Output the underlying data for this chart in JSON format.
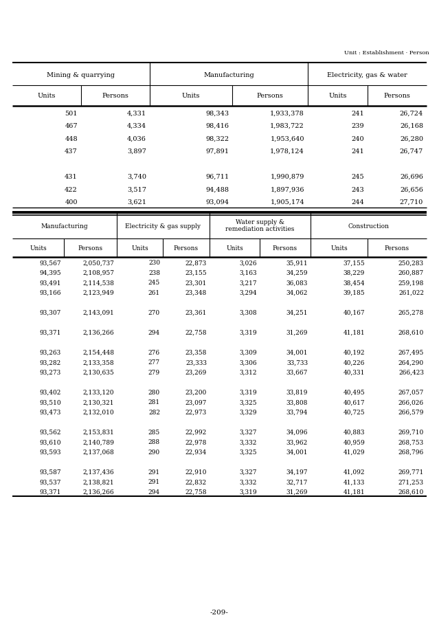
{
  "unit_label": "Unit : Establishment · Person",
  "page_number": "-209-",
  "table1": {
    "col_groups": [
      {
        "label": "Mining & quarrying",
        "span": 2
      },
      {
        "label": "Manufacturing",
        "span": 2
      },
      {
        "label": "Electricity, gas & water",
        "span": 2
      }
    ],
    "sub_headers": [
      "Units",
      "Persons",
      "Units",
      "Persons",
      "Units",
      "Persons"
    ],
    "rows": [
      [
        "501",
        "4,331",
        "98,343",
        "1,933,378",
        "241",
        "26,724"
      ],
      [
        "467",
        "4,334",
        "98,416",
        "1,983,722",
        "239",
        "26,168"
      ],
      [
        "448",
        "4,036",
        "98,322",
        "1,953,640",
        "240",
        "26,280"
      ],
      [
        "437",
        "3,897",
        "97,891",
        "1,978,124",
        "241",
        "26,747"
      ],
      [
        "",
        "",
        "",
        "",
        "",
        ""
      ],
      [
        "431",
        "3,740",
        "96,711",
        "1,990,879",
        "245",
        "26,696"
      ],
      [
        "422",
        "3,517",
        "94,488",
        "1,897,936",
        "243",
        "26,656"
      ],
      [
        "400",
        "3,621",
        "93,094",
        "1,905,174",
        "244",
        "27,710"
      ]
    ]
  },
  "table2": {
    "col_groups": [
      {
        "label": "Manufacturing",
        "span": 2
      },
      {
        "label": "Electricity & gas supply",
        "span": 2
      },
      {
        "label": "Water supply &\nremediation activities",
        "span": 2
      },
      {
        "label": "Construction",
        "span": 2
      }
    ],
    "sub_headers": [
      "Units",
      "Persons",
      "Units",
      "Persons",
      "Units",
      "Persons",
      "Units",
      "Persons"
    ],
    "rows": [
      [
        "93,567",
        "2,050,737",
        "230",
        "22,873",
        "3,026",
        "35,911",
        "37,155",
        "250,283"
      ],
      [
        "94,395",
        "2,108,957",
        "238",
        "23,155",
        "3,163",
        "34,259",
        "38,229",
        "260,887"
      ],
      [
        "93,491",
        "2,114,538",
        "245",
        "23,301",
        "3,217",
        "36,083",
        "38,454",
        "259,198"
      ],
      [
        "93,166",
        "2,123,949",
        "261",
        "23,348",
        "3,294",
        "34,062",
        "39,185",
        "261,022"
      ],
      [
        "",
        "",
        "",
        "",
        "",
        "",
        "",
        ""
      ],
      [
        "93,307",
        "2,143,091",
        "270",
        "23,361",
        "3,308",
        "34,251",
        "40,167",
        "265,278"
      ],
      [
        "",
        "",
        "",
        "",
        "",
        "",
        "",
        ""
      ],
      [
        "93,371",
        "2,136,266",
        "294",
        "22,758",
        "3,319",
        "31,269",
        "41,181",
        "268,610"
      ],
      [
        "",
        "",
        "",
        "",
        "",
        "",
        "",
        ""
      ],
      [
        "93,263",
        "2,154,448",
        "276",
        "23,358",
        "3,309",
        "34,001",
        "40,192",
        "267,495"
      ],
      [
        "93,282",
        "2,133,358",
        "277",
        "23,333",
        "3,306",
        "33,733",
        "40,226",
        "264,290"
      ],
      [
        "93,273",
        "2,130,635",
        "279",
        "23,269",
        "3,312",
        "33,667",
        "40,331",
        "266,423"
      ],
      [
        "",
        "",
        "",
        "",
        "",
        "",
        "",
        ""
      ],
      [
        "93,402",
        "2,133,120",
        "280",
        "23,200",
        "3,319",
        "33,819",
        "40,495",
        "267,057"
      ],
      [
        "93,510",
        "2,130,321",
        "281",
        "23,097",
        "3,325",
        "33,808",
        "40,617",
        "266,026"
      ],
      [
        "93,473",
        "2,132,010",
        "282",
        "22,973",
        "3,329",
        "33,794",
        "40,725",
        "266,579"
      ],
      [
        "",
        "",
        "",
        "",
        "",
        "",
        "",
        ""
      ],
      [
        "93,562",
        "2,153,831",
        "285",
        "22,992",
        "3,327",
        "34,096",
        "40,883",
        "269,710"
      ],
      [
        "93,610",
        "2,140,789",
        "288",
        "22,978",
        "3,332",
        "33,962",
        "40,959",
        "268,753"
      ],
      [
        "93,593",
        "2,137,068",
        "290",
        "22,934",
        "3,325",
        "34,001",
        "41,029",
        "268,796"
      ],
      [
        "",
        "",
        "",
        "",
        "",
        "",
        "",
        ""
      ],
      [
        "93,587",
        "2,137,436",
        "291",
        "22,910",
        "3,327",
        "34,197",
        "41,092",
        "269,771"
      ],
      [
        "93,537",
        "2,138,821",
        "291",
        "22,832",
        "3,332",
        "32,717",
        "41,133",
        "271,253"
      ],
      [
        "93,371",
        "2,136,266",
        "294",
        "22,758",
        "3,319",
        "31,269",
        "41,181",
        "268,610"
      ]
    ]
  }
}
